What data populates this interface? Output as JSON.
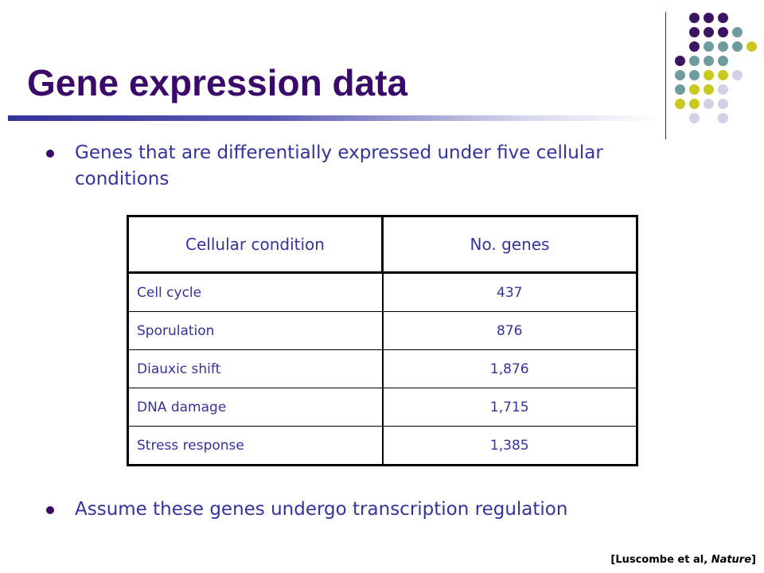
{
  "title": "Gene expression data",
  "bullets": [
    "Genes that are differentially expressed under five cellular conditions",
    "Assume these genes undergo transcription regulation"
  ],
  "table": {
    "headers": [
      "Cellular condition",
      "No. genes"
    ],
    "rows": [
      {
        "condition": "Cell cycle",
        "genes": "437"
      },
      {
        "condition": "Sporulation",
        "genes": "876"
      },
      {
        "condition": "Diauxic shift",
        "genes": "1,876"
      },
      {
        "condition": "DNA damage",
        "genes": "1,715"
      },
      {
        "condition": "Stress response",
        "genes": "1,385"
      }
    ]
  },
  "citation": {
    "prefix": "[Luscombe et al, ",
    "journal": "Nature",
    "suffix": "]"
  },
  "colors": {
    "title": "#3a0a6a",
    "text": "#33339a",
    "dot_purple": "#3c1464",
    "dot_teal": "#6e9c9c",
    "dot_yellow": "#c8c81e",
    "dot_lavender": "#d0d0e6"
  }
}
